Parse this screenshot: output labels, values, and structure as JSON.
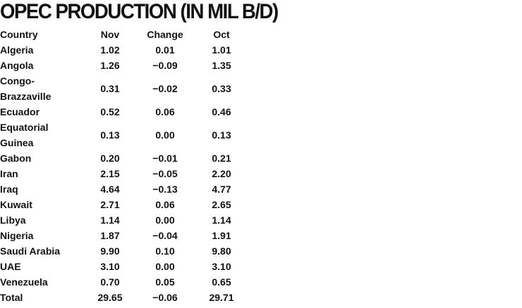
{
  "header": {
    "title": "OPEC PRODUCTION (IN MIL B/D)"
  },
  "table": {
    "columns": [
      "Country",
      "Nov",
      "Change",
      "Oct"
    ],
    "rows": [
      [
        "Algeria",
        "1.02",
        "0.01",
        "1.01"
      ],
      [
        "Angola",
        "1.26",
        "−0.09",
        "1.35"
      ],
      [
        "Congo-Brazzaville",
        "0.31",
        "−0.02",
        "0.33"
      ],
      [
        "Ecuador",
        "0.52",
        "0.06",
        "0.46"
      ],
      [
        "Equatorial Guinea",
        "0.13",
        "0.00",
        "0.13"
      ],
      [
        "Gabon",
        "0.20",
        "−0.01",
        "0.21"
      ],
      [
        "Iran",
        "2.15",
        "−0.05",
        "2.20"
      ],
      [
        "Iraq",
        "4.64",
        "−0.13",
        "4.77"
      ],
      [
        "Kuwait",
        "2.71",
        "0.06",
        "2.65"
      ],
      [
        "Libya",
        "1.14",
        "0.00",
        "1.14"
      ],
      [
        "Nigeria",
        "1.87",
        "−0.04",
        "1.91"
      ],
      [
        "Saudi Arabia",
        "9.90",
        "0.10",
        "9.80"
      ],
      [
        "UAE",
        "3.10",
        "0.00",
        "3.10"
      ],
      [
        "Venezuela",
        "0.70",
        "0.05",
        "0.65"
      ],
      [
        "Total",
        "29.65",
        "−0.06",
        "29.71"
      ]
    ]
  }
}
